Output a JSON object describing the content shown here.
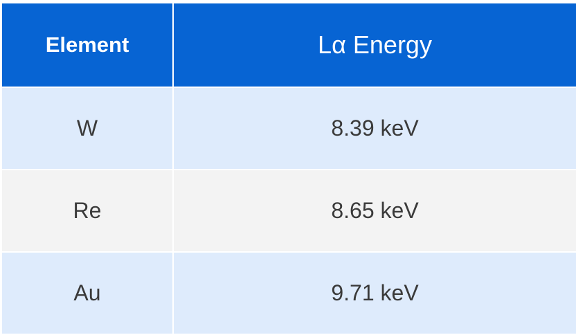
{
  "table": {
    "header": [
      "Element",
      "Lα Energy"
    ],
    "rows": [
      [
        "W",
        "8.39 keV"
      ],
      [
        "Re",
        "8.65 keV"
      ],
      [
        "Au",
        "9.71 keV"
      ]
    ]
  }
}
